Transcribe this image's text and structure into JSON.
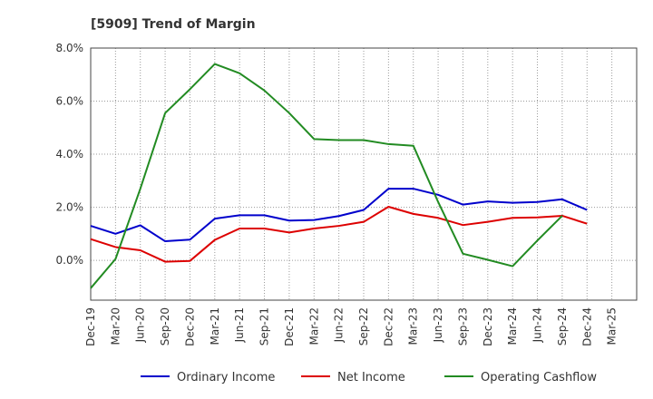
{
  "chart_data": {
    "type": "line",
    "title": "[5909]  Trend of Margin",
    "xlabel": "",
    "ylabel": "",
    "ylim": [
      -1.5,
      8.0
    ],
    "yticks": [
      {
        "value": 0.0,
        "label": "0.0%"
      },
      {
        "value": 2.0,
        "label": "2.0%"
      },
      {
        "value": 4.0,
        "label": "4.0%"
      },
      {
        "value": 6.0,
        "label": "6.0%"
      },
      {
        "value": 8.0,
        "label": "8.0%"
      }
    ],
    "grid": true,
    "legend_position": "bottom",
    "categories": [
      "Dec-19",
      "Mar-20",
      "Jun-20",
      "Sep-20",
      "Dec-20",
      "Mar-21",
      "Jun-21",
      "Sep-21",
      "Dec-21",
      "Mar-22",
      "Jun-22",
      "Sep-22",
      "Dec-22",
      "Mar-23",
      "Jun-23",
      "Sep-23",
      "Dec-23",
      "Mar-24",
      "Jun-24",
      "Sep-24",
      "Dec-24",
      "Mar-25"
    ],
    "series": [
      {
        "name": "Ordinary Income",
        "color": "#0000cc",
        "values": [
          1.3,
          1.0,
          1.32,
          0.72,
          0.78,
          1.57,
          1.7,
          1.7,
          1.5,
          1.52,
          1.67,
          1.9,
          2.7,
          2.7,
          2.47,
          2.1,
          2.22,
          2.17,
          2.2,
          2.3,
          1.9,
          null
        ]
      },
      {
        "name": "Net Income",
        "color": "#dd0000",
        "values": [
          0.8,
          0.5,
          0.38,
          -0.05,
          -0.02,
          0.77,
          1.2,
          1.2,
          1.05,
          1.2,
          1.3,
          1.45,
          2.02,
          1.75,
          1.6,
          1.33,
          1.45,
          1.6,
          1.62,
          1.68,
          1.38,
          null
        ]
      },
      {
        "name": "Operating Cashflow",
        "color": "#228b22",
        "values": [
          -1.05,
          0.05,
          2.7,
          5.55,
          6.45,
          7.4,
          7.05,
          6.4,
          5.55,
          4.57,
          4.53,
          4.53,
          4.38,
          4.32,
          2.2,
          0.25,
          0.02,
          -0.22,
          0.75,
          1.68,
          null,
          null
        ]
      }
    ]
  }
}
